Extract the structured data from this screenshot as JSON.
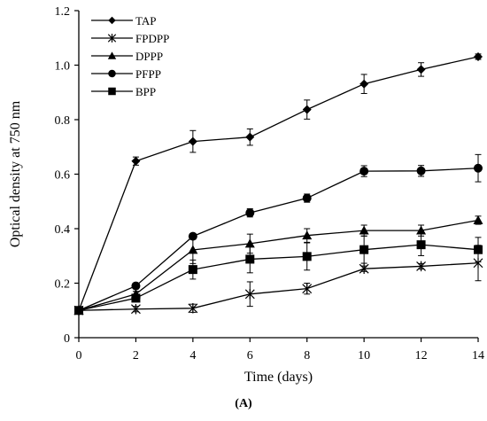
{
  "chart_data": {
    "type": "line",
    "xlabel": "Time (days)",
    "ylabel": "Optical density at 750 nm",
    "xlim": [
      0,
      14
    ],
    "ylim": [
      0,
      1.2
    ],
    "x_ticks": [
      0,
      2,
      4,
      6,
      8,
      10,
      12,
      14
    ],
    "y_ticks": [
      0,
      0.2,
      0.4,
      0.6,
      0.8,
      1.0,
      1.2
    ],
    "y_tick_labels": [
      "0",
      "0.2",
      "0.4",
      "0.6",
      "0.8",
      "1.0",
      "1.2"
    ],
    "x": [
      0,
      2,
      4,
      6,
      8,
      10,
      12,
      14
    ],
    "legend_position": "top-left",
    "grid": false,
    "series": [
      {
        "name": "TAP",
        "marker": "diamond",
        "values": [
          0.1,
          0.648,
          0.72,
          0.736,
          0.837,
          0.931,
          0.984,
          1.031
        ],
        "errors": [
          0.0,
          0.015,
          0.04,
          0.03,
          0.035,
          0.035,
          0.025,
          0.01
        ]
      },
      {
        "name": "FPDPP",
        "marker": "asterisk",
        "values": [
          0.1,
          0.105,
          0.108,
          0.16,
          0.18,
          0.253,
          0.262,
          0.274
        ],
        "errors": [
          0.0,
          0.01,
          0.015,
          0.045,
          0.02,
          0.01,
          0.01,
          0.065
        ]
      },
      {
        "name": "DPPP",
        "marker": "triangle",
        "values": [
          0.1,
          0.16,
          0.322,
          0.345,
          0.375,
          0.393,
          0.393,
          0.431
        ],
        "errors": [
          0.0,
          0.01,
          0.05,
          0.035,
          0.025,
          0.02,
          0.02,
          0.015
        ]
      },
      {
        "name": "PFPP",
        "marker": "circle",
        "values": [
          0.1,
          0.19,
          0.372,
          0.458,
          0.512,
          0.611,
          0.612,
          0.622
        ],
        "errors": [
          0.0,
          0.01,
          0.01,
          0.015,
          0.015,
          0.02,
          0.02,
          0.05
        ]
      },
      {
        "name": "BPP",
        "marker": "square",
        "values": [
          0.1,
          0.145,
          0.25,
          0.288,
          0.298,
          0.323,
          0.341,
          0.323
        ],
        "errors": [
          0.0,
          0.01,
          0.035,
          0.05,
          0.05,
          0.05,
          0.04,
          0.045
        ]
      }
    ]
  },
  "figure_caption": "(A)"
}
